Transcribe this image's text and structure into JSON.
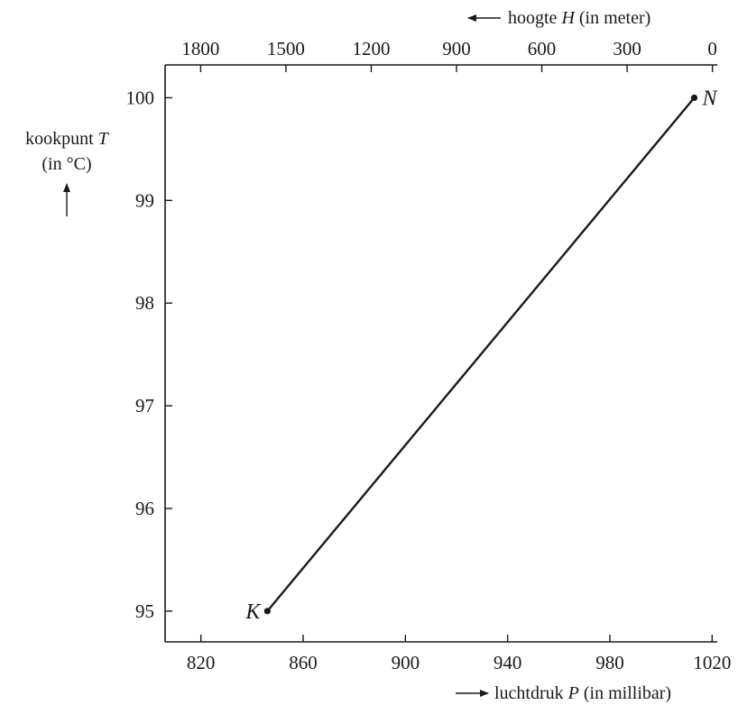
{
  "chart_data": {
    "type": "line",
    "title": "",
    "y_axis": {
      "label_line1_pre": "kookpunt ",
      "label_line1_var": "T",
      "label_line2": "(in °C)",
      "ticks": [
        95,
        96,
        97,
        98,
        99,
        100
      ],
      "range": [
        94.7,
        100.32
      ]
    },
    "x_axis_bottom": {
      "label_pre": "luchtdruk ",
      "label_var": "P",
      "label_post": " (in millibar)",
      "ticks": [
        820,
        860,
        900,
        940,
        980,
        1020
      ],
      "range": [
        806,
        1022
      ]
    },
    "x_axis_top": {
      "label_pre": "hoogte ",
      "label_var": "H",
      "label_post": " (in meter)",
      "ticks": [
        1800,
        1500,
        1200,
        900,
        600,
        300,
        0
      ],
      "range": [
        1925,
        -17
      ]
    },
    "series": [
      {
        "points": [
          {
            "label": "K",
            "P": 846,
            "T": 95
          },
          {
            "label": "N",
            "P": 1013,
            "T": 100
          }
        ]
      }
    ],
    "colors": {
      "ink": "#1a1a1a"
    }
  }
}
